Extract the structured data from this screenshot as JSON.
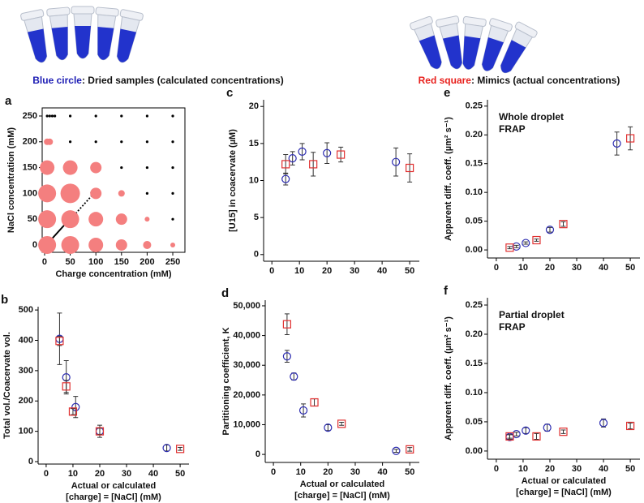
{
  "captions": [
    {
      "key": "Blue circle",
      "text": ": Dried samples (calculated concentrations)",
      "color": "#1c1cb4"
    },
    {
      "key": "Red square",
      "text": ": Mimics (actual concentrations)",
      "color": "#e8201c"
    }
  ],
  "chart_data": [
    {
      "type": "bubble",
      "panel": "a",
      "xlabel": "Charge concentration (mM)",
      "ylabel": "NaCl concentration (mM)",
      "xlim": [
        -4.7,
        273.7
      ],
      "ylim": [
        -14.2,
        265.7
      ],
      "xticks": [
        0,
        50,
        100,
        150,
        200,
        250
      ],
      "yticks": [
        0,
        50,
        100,
        150,
        200,
        250
      ],
      "series": [
        {
          "color": "#f47f7f",
          "x": [
            5,
            50,
            100,
            150,
            200,
            250,
            5,
            50,
            100,
            150,
            200,
            5,
            50,
            100,
            150,
            5,
            50,
            100,
            5,
            10
          ],
          "y": [
            0,
            0,
            0,
            0,
            0,
            0,
            50,
            50,
            50,
            50,
            50,
            100,
            100,
            100,
            100,
            150,
            150,
            150,
            200,
            200
          ],
          "sizes": [
            11,
            11,
            9,
            7,
            5,
            3,
            11,
            11,
            9,
            7,
            3,
            11,
            12,
            7,
            4,
            9,
            9,
            7,
            4,
            4
          ]
        },
        {
          "color": "#000000",
          "x": [
            250,
            200,
            250,
            150,
            200,
            250,
            50,
            100,
            150,
            200,
            250,
            5,
            10,
            15,
            20,
            50,
            100,
            150,
            200,
            250
          ],
          "y": [
            50,
            100,
            100,
            150,
            150,
            150,
            200,
            200,
            200,
            200,
            200,
            250,
            250,
            250,
            250,
            250,
            250,
            250,
            250,
            250
          ],
          "sizes": [
            1.6,
            1.6,
            1.6,
            1.6,
            1.6,
            1.6,
            1.6,
            1.6,
            1.6,
            1.6,
            1.6,
            1.6,
            1.6,
            1.6,
            1.6,
            1.6,
            1.6,
            1.6,
            1.6,
            1.6
          ]
        }
      ]
    },
    {
      "type": "scatter",
      "panel": "b",
      "xlabel": [
        "Actual or calculated",
        "[charge] = [NaCl] (mM)"
      ],
      "ylabel": "Total vol./Coacervate vol.",
      "xlim": [
        -3,
        53.3
      ],
      "ylim": [
        -8,
        511
      ],
      "xticks": [
        0,
        10,
        20,
        30,
        40,
        50
      ],
      "yticks": [
        0,
        100,
        200,
        300,
        400,
        500
      ],
      "series": [
        {
          "marker": "circle",
          "color": "#2b2bb0",
          "x": [
            5,
            7.5,
            11,
            20,
            45
          ],
          "values": [
            405,
            278,
            180,
            100,
            45
          ],
          "errors": [
            85,
            55,
            35,
            20,
            10
          ]
        },
        {
          "marker": "square",
          "color": "#e03030",
          "x": [
            5,
            7.5,
            10,
            20,
            50
          ],
          "values": [
            398,
            248,
            165,
            100,
            42
          ],
          "errors": [
            15,
            20,
            10,
            10,
            5
          ]
        }
      ]
    },
    {
      "type": "scatter",
      "panel": "c",
      "xlabel": null,
      "ylabel": "[U15] in coacervate (µM)",
      "xlim": [
        -3,
        53.5
      ],
      "ylim": [
        -0.9,
        20.9
      ],
      "xticks": [
        0,
        10,
        20,
        30,
        40,
        50
      ],
      "yticks": [
        0,
        5,
        10,
        15,
        20
      ],
      "series": [
        {
          "marker": "circle",
          "color": "#2b2bb0",
          "x": [
            5,
            7.5,
            11,
            20,
            45
          ],
          "values": [
            10.2,
            13,
            13.9,
            13.7,
            12.5
          ],
          "errors": [
            0.8,
            0.9,
            1.1,
            1.4,
            1.9
          ]
        },
        {
          "marker": "square",
          "color": "#e03030",
          "x": [
            5,
            15,
            25,
            50
          ],
          "values": [
            12.2,
            12.2,
            13.5,
            11.7
          ],
          "errors": [
            1.3,
            1.6,
            1,
            1.9
          ]
        }
      ]
    },
    {
      "type": "scatter",
      "panel": "d",
      "xlabel": [
        "Actual or calculated",
        "[charge] = [NaCl] (mM)"
      ],
      "ylabel": "Partitioning coefficient, K",
      "xlim": [
        -3,
        53.5
      ],
      "ylim": [
        -2700,
        51900
      ],
      "xticks": [
        0,
        10,
        20,
        30,
        40,
        50
      ],
      "yticks": [
        0,
        {
          "value": 10000,
          "label": "10,000"
        },
        {
          "value": 20000,
          "label": "20,000"
        },
        {
          "value": 30000,
          "label": "30,000"
        },
        {
          "value": 40000,
          "label": "40,000"
        },
        {
          "value": 50000,
          "label": "50,000"
        }
      ],
      "series": [
        {
          "marker": "circle",
          "color": "#2b2bb0",
          "x": [
            5,
            7.5,
            11,
            20,
            45
          ],
          "values": [
            33000,
            26200,
            14800,
            9000,
            1200
          ],
          "errors": [
            2000,
            1200,
            2200,
            1000,
            500
          ]
        },
        {
          "marker": "square",
          "color": "#e03030",
          "x": [
            5,
            15,
            25,
            50
          ],
          "values": [
            43800,
            17500,
            10300,
            1700
          ],
          "errors": [
            3500,
            1200,
            500,
            600
          ]
        }
      ]
    },
    {
      "type": "scatter",
      "panel": "e",
      "xlabel": null,
      "ylabel": "Apparent diff. coeff. (µm² s⁻¹)",
      "annotation": [
        "Whole droplet",
        "FRAP"
      ],
      "xlim": [
        -3.3,
        53.6
      ],
      "ylim": [
        -0.014,
        0.261
      ],
      "xticks": [
        0,
        10,
        20,
        30,
        40,
        50
      ],
      "yticks": [
        {
          "value": 0,
          "label": "0.00"
        },
        {
          "value": 0.05,
          "label": "0.05"
        },
        {
          "value": 0.1,
          "label": "0.10"
        },
        {
          "value": 0.15,
          "label": "0.15"
        },
        {
          "value": 0.2,
          "label": "0.20"
        },
        {
          "value": 0.25,
          "label": "0.25"
        }
      ],
      "series": [
        {
          "marker": "circle",
          "color": "#2b2bb0",
          "x": [
            7.5,
            11,
            20,
            45
          ],
          "values": [
            0.006,
            0.012,
            0.035,
            0.185
          ],
          "errors": [
            0.002,
            0.002,
            0.004,
            0.02
          ]
        },
        {
          "marker": "square",
          "color": "#e03030",
          "x": [
            5,
            15,
            25,
            50
          ],
          "values": [
            0.004,
            0.017,
            0.045,
            0.194
          ],
          "errors": [
            0.002,
            0.002,
            0.004,
            0.02
          ]
        }
      ]
    },
    {
      "type": "scatter",
      "panel": "f",
      "xlabel": [
        "Actual or calculated",
        "[charge] = [NaCl] (mM)"
      ],
      "ylabel": "Apparent diff. coeff. (µm² s⁻¹)",
      "annotation": [
        "Partial droplet",
        "FRAP"
      ],
      "xlim": [
        -3.3,
        53.6
      ],
      "ylim": [
        -0.014,
        0.2625
      ],
      "xticks": [
        0,
        10,
        20,
        30,
        40,
        50
      ],
      "yticks": [
        {
          "value": 0,
          "label": "0.00"
        },
        {
          "value": 0.05,
          "label": "0.05"
        },
        {
          "value": 0.1,
          "label": "0.10"
        },
        {
          "value": 0.15,
          "label": "0.15"
        },
        {
          "value": 0.2,
          "label": "0.20"
        },
        {
          "value": 0.25,
          "label": "0.25"
        }
      ],
      "series": [
        {
          "marker": "circle",
          "color": "#2b2bb0",
          "x": [
            5,
            7.5,
            11,
            19,
            40
          ],
          "values": [
            0.024,
            0.029,
            0.035,
            0.04,
            0.048
          ],
          "errors": [
            0.004,
            0.003,
            0.005,
            0.006,
            0.007
          ]
        },
        {
          "marker": "square",
          "color": "#e03030",
          "x": [
            5,
            15,
            25,
            50
          ],
          "values": [
            0.025,
            0.025,
            0.033,
            0.043
          ],
          "errors": [
            0.003,
            0.005,
            0.003,
            0.005
          ]
        }
      ]
    }
  ]
}
